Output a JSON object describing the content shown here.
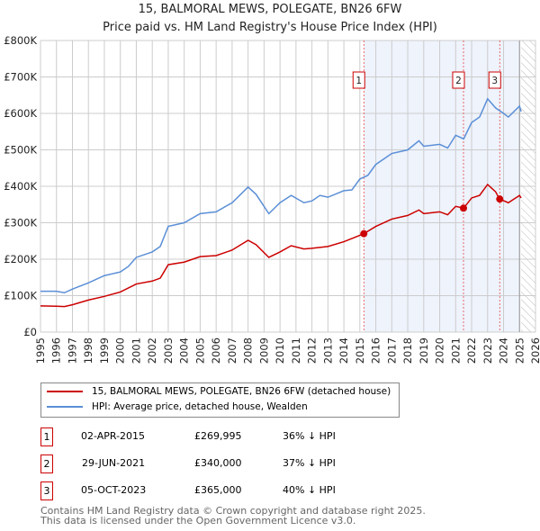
{
  "chart_data": {
    "type": "line",
    "title": "15, BALMORAL MEWS, POLEGATE, BN26 6FW",
    "subtitle": "Price paid vs. HM Land Registry's House Price Index (HPI)",
    "xlim": [
      1995,
      2026
    ],
    "ylim": [
      0,
      800000
    ],
    "x_ticks": [
      "1995",
      "1996",
      "1997",
      "1998",
      "1999",
      "2000",
      "2001",
      "2002",
      "2003",
      "2004",
      "2005",
      "2006",
      "2007",
      "2008",
      "2009",
      "2010",
      "2011",
      "2012",
      "2013",
      "2014",
      "2015",
      "2016",
      "2017",
      "2018",
      "2019",
      "2020",
      "2021",
      "2022",
      "2023",
      "2024",
      "2025",
      "2026"
    ],
    "y_ticks": [
      {
        "v": 0,
        "label": "£0"
      },
      {
        "v": 100000,
        "label": "£100K"
      },
      {
        "v": 200000,
        "label": "£200K"
      },
      {
        "v": 300000,
        "label": "£300K"
      },
      {
        "v": 400000,
        "label": "£400K"
      },
      {
        "v": 500000,
        "label": "£500K"
      },
      {
        "v": 600000,
        "label": "£600K"
      },
      {
        "v": 700000,
        "label": "£700K"
      },
      {
        "v": 800000,
        "label": "£800K"
      }
    ],
    "grid": true,
    "shaded_region": [
      2015.25,
      2025.0
    ],
    "forecast_hatch_from": 2025.1,
    "series": [
      {
        "name": "15, BALMORAL MEWS, POLEGATE, BN26 6FW (detached house)",
        "color": "#cc0000",
        "x": [
          1995,
          1996,
          1996.5,
          1997,
          1998,
          1999,
          2000,
          2001,
          2002,
          2002.5,
          2003,
          2004,
          2005,
          2006,
          2007,
          2008,
          2008.5,
          2009.3,
          2010,
          2010.7,
          2011.5,
          2012,
          2013,
          2014,
          2015.25,
          2016,
          2017,
          2018,
          2018.7,
          2019,
          2020,
          2020.5,
          2021,
          2021.5,
          2022,
          2022.5,
          2023,
          2023.5,
          2023.75,
          2024.3,
          2025,
          2025.1
        ],
        "y": [
          72000,
          71000,
          70000,
          75000,
          88000,
          98000,
          110000,
          132000,
          140000,
          148000,
          185000,
          192000,
          207000,
          210000,
          225000,
          252000,
          240000,
          205000,
          220000,
          237000,
          228000,
          230000,
          235000,
          248000,
          269995,
          290000,
          310000,
          320000,
          335000,
          325000,
          330000,
          322000,
          345000,
          340000,
          368000,
          375000,
          405000,
          385000,
          365000,
          355000,
          375000,
          368000
        ]
      },
      {
        "name": "HPI: Average price, detached house, Wealden",
        "color": "#5b8fd6",
        "x": [
          1995,
          1996,
          1996.5,
          1997,
          1998,
          1999,
          2000,
          2000.5,
          2001,
          2002,
          2002.5,
          2003,
          2004,
          2005,
          2006,
          2007,
          2008,
          2008.5,
          2009.3,
          2010,
          2010.7,
          2011.5,
          2012,
          2012.5,
          2013,
          2014,
          2014.5,
          2015,
          2015.5,
          2016,
          2017,
          2018,
          2018.7,
          2019,
          2020,
          2020.5,
          2021,
          2021.5,
          2022,
          2022.5,
          2023,
          2023.5,
          2024,
          2024.3,
          2025,
          2025.1
        ],
        "y": [
          112000,
          112000,
          108000,
          118000,
          135000,
          155000,
          165000,
          180000,
          205000,
          220000,
          235000,
          290000,
          300000,
          325000,
          330000,
          355000,
          398000,
          378000,
          325000,
          355000,
          375000,
          355000,
          360000,
          375000,
          370000,
          388000,
          390000,
          420000,
          430000,
          460000,
          490000,
          500000,
          525000,
          510000,
          515000,
          505000,
          540000,
          530000,
          575000,
          590000,
          640000,
          615000,
          600000,
          590000,
          620000,
          605000
        ]
      }
    ],
    "sales": [
      {
        "n": "1",
        "x": 2015.25,
        "y": 269995,
        "date": "02-APR-2015",
        "price": "£269,995",
        "hpi": "36% ↓ HPI"
      },
      {
        "n": "2",
        "x": 2021.49,
        "y": 340000,
        "date": "29-JUN-2021",
        "price": "£340,000",
        "hpi": "37% ↓ HPI"
      },
      {
        "n": "3",
        "x": 2023.76,
        "y": 365000,
        "date": "05-OCT-2023",
        "price": "£365,000",
        "hpi": "40% ↓ HPI"
      }
    ]
  },
  "footer": {
    "line1": "Contains HM Land Registry data © Crown copyright and database right 2025.",
    "line2": "This data is licensed under the Open Government Licence v3.0."
  }
}
